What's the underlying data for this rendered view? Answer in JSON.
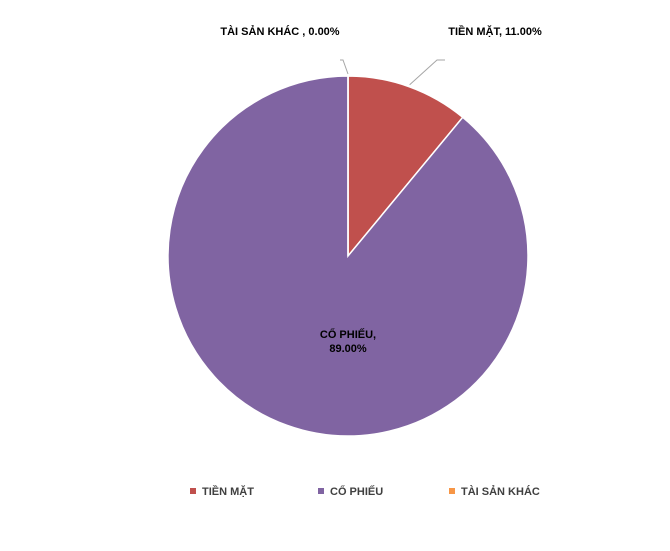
{
  "chart_data": {
    "type": "pie",
    "categories": [
      "TIỀN MẶT",
      "CỔ PHIẾU",
      "TÀI SẢN KHÁC"
    ],
    "values": [
      11,
      89,
      0
    ],
    "value_labels": [
      "TIỀN MẶT, 11.00%",
      "CỔ PHIẾU, 89.00%",
      "TÀI SẢN KHÁC , 0.00%"
    ],
    "colors": [
      "#c0504d",
      "#8064a2",
      "#f79646"
    ],
    "legend": "bottom"
  }
}
